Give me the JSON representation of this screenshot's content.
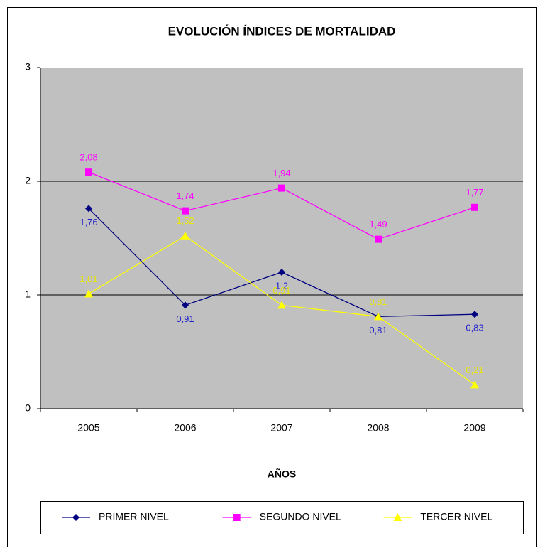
{
  "chart_data": {
    "type": "line",
    "title": "EVOLUCIÓN ÍNDICES DE MORTALIDAD",
    "x_label": "AÑOS",
    "categories": [
      "2005",
      "2006",
      "2007",
      "2008",
      "2009"
    ],
    "series": [
      {
        "name": "PRIMER NIVEL",
        "color": "#000080",
        "label_color": "#2222cc",
        "marker": "diamond",
        "values": [
          1.76,
          0.91,
          1.2,
          0.81,
          0.83
        ],
        "value_labels": [
          "1,76",
          "0,91",
          "1,2",
          "0,81",
          "0,83"
        ]
      },
      {
        "name": "SEGUNDO NIVEL",
        "color": "#ff00ff",
        "label_color": "#ff00ff",
        "marker": "square",
        "values": [
          2.08,
          1.74,
          1.94,
          1.49,
          1.77
        ],
        "value_labels": [
          "2,08",
          "1,74",
          "1,94",
          "1,49",
          "1,77"
        ]
      },
      {
        "name": "TERCER NIVEL",
        "color": "#ffff00",
        "label_color": "#e8e800",
        "marker": "triangle",
        "values": [
          1.01,
          1.52,
          0.91,
          0.81,
          0.21
        ],
        "value_labels": [
          "1,01",
          "1,52",
          "0,91",
          "0,81",
          "0,21"
        ]
      }
    ],
    "ylim": [
      0,
      3
    ],
    "yticks": [
      0,
      1,
      2,
      3
    ],
    "grid": true,
    "legend": "bottom"
  }
}
